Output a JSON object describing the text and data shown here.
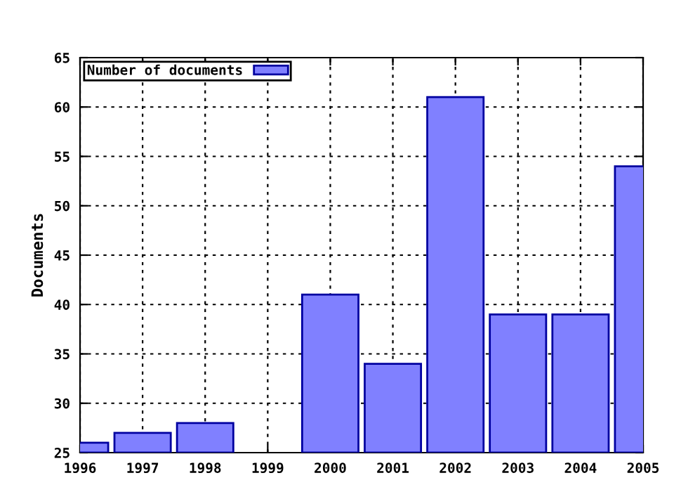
{
  "chart_data": {
    "type": "bar",
    "ylabel": "Documents",
    "x": [
      1996,
      1997,
      1998,
      1999,
      2000,
      2001,
      2002,
      2003,
      2004,
      2005
    ],
    "series": [
      {
        "name": "Number of documents",
        "color": "#8080ff",
        "values": [
          26,
          27,
          28,
          null,
          41,
          34,
          61,
          39,
          39,
          54
        ]
      }
    ],
    "xlim": [
      1996,
      2005
    ],
    "xticks": [
      1996,
      1997,
      1998,
      1999,
      2000,
      2001,
      2002,
      2003,
      2004,
      2005
    ],
    "ylim": [
      25,
      65
    ],
    "yticks": [
      25,
      30,
      35,
      40,
      45,
      50,
      55,
      60,
      65
    ],
    "grid": true,
    "legend": "top left"
  }
}
